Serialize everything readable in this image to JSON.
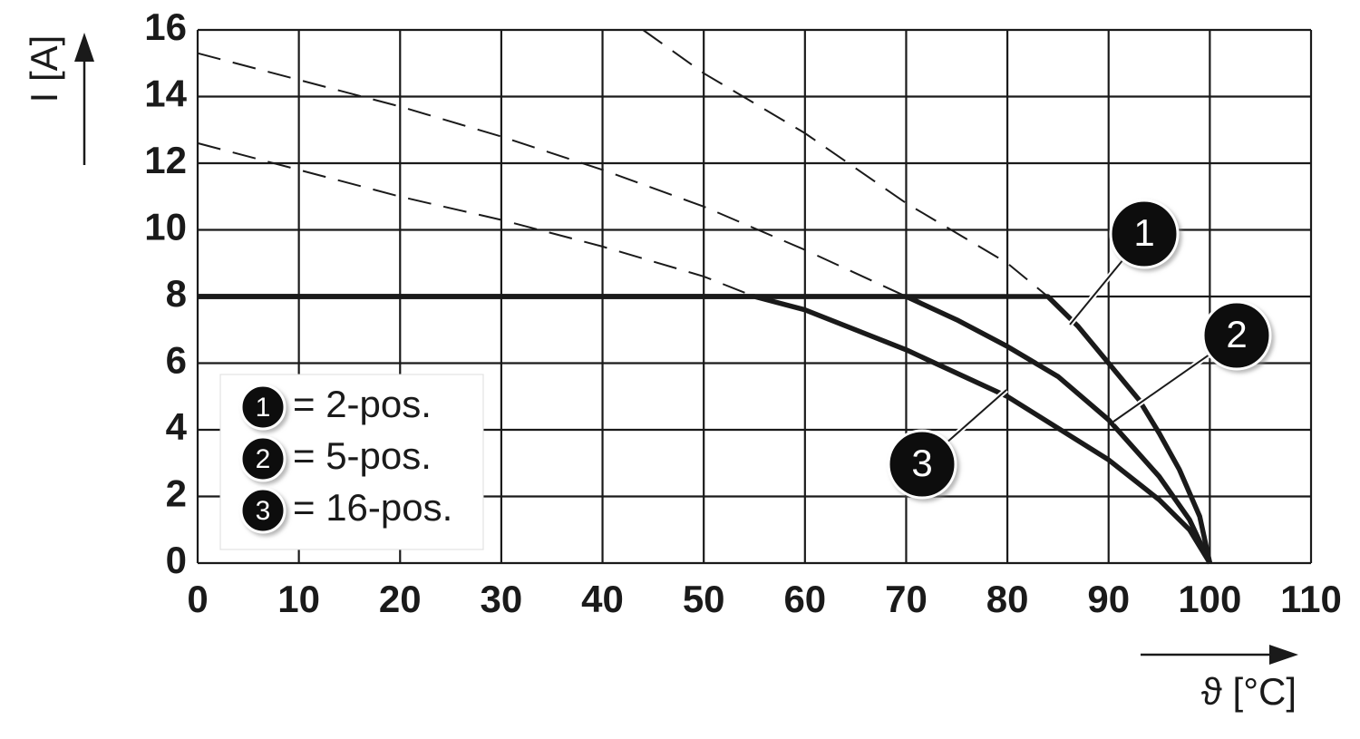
{
  "chart_data": {
    "type": "line",
    "x_label": "ϑ [°C]",
    "y_label": "I [A]",
    "xlim": [
      0,
      110
    ],
    "ylim": [
      0,
      16
    ],
    "xticks": [
      0,
      10,
      20,
      30,
      40,
      50,
      60,
      70,
      80,
      90,
      100,
      110
    ],
    "yticks": [
      0,
      2,
      4,
      6,
      8,
      10,
      12,
      14,
      16
    ],
    "grid": true,
    "series": [
      {
        "name": "1",
        "description": "= 2-pos.",
        "color": "#1a1a1a",
        "x": [
          0,
          84,
          87,
          90,
          93,
          95,
          97,
          99,
          100
        ],
        "values": [
          8,
          8,
          7.1,
          6.0,
          4.9,
          3.9,
          2.8,
          1.4,
          0
        ],
        "dashed_x": [
          44,
          50,
          60,
          70,
          80,
          84
        ],
        "dashed_values": [
          16,
          14.7,
          12.9,
          10.8,
          9.0,
          8
        ]
      },
      {
        "name": "2",
        "description": "= 5-pos.",
        "color": "#1a1a1a",
        "x": [
          0,
          70,
          75,
          80,
          85,
          90,
          95,
          98,
          100
        ],
        "values": [
          8,
          8,
          7.3,
          6.5,
          5.6,
          4.3,
          2.6,
          1.3,
          0
        ],
        "dashed_x": [
          0,
          10,
          20,
          30,
          40,
          50,
          60,
          70
        ],
        "dashed_values": [
          15.3,
          14.5,
          13.7,
          12.8,
          11.8,
          10.7,
          9.4,
          8
        ]
      },
      {
        "name": "3",
        "description": "= 16-pos.",
        "color": "#1a1a1a",
        "x": [
          0,
          55,
          60,
          70,
          80,
          90,
          95,
          98,
          100
        ],
        "values": [
          8,
          8,
          7.6,
          6.4,
          5.0,
          3.1,
          1.9,
          1.0,
          0
        ],
        "dashed_x": [
          0,
          10,
          20,
          30,
          40,
          50,
          55
        ],
        "dashed_values": [
          12.6,
          11.8,
          11.0,
          10.3,
          9.5,
          8.6,
          8
        ]
      }
    ]
  }
}
